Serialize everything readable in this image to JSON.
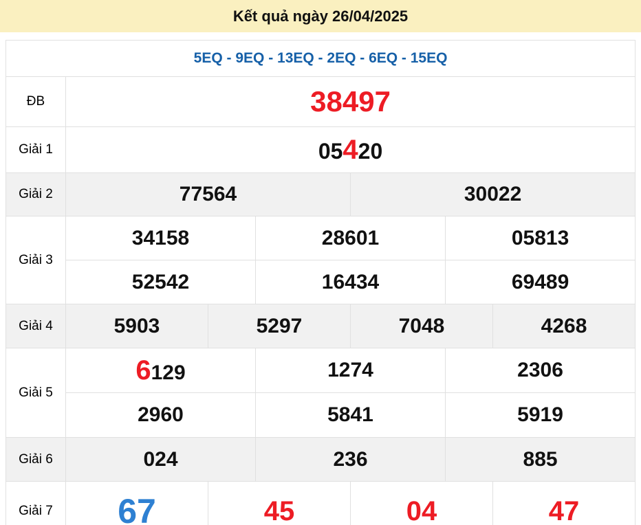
{
  "header": {
    "title": "Kết quả ngày 26/04/2025"
  },
  "station_line": "5EQ - 9EQ - 13EQ - 2EQ - 6EQ - 15EQ",
  "colors": {
    "header_bg": "#faf0c0",
    "station_text": "#1660a8",
    "highlight_red": "#ed1c24",
    "special_blue": "#2e80d2",
    "alt_row_bg": "#f1f1f1",
    "border": "#e0e0e0"
  },
  "results": {
    "db": {
      "label": "ĐB",
      "value": "38497"
    },
    "g1": {
      "label": "Giải 1",
      "pre": "05",
      "hl": "4",
      "post": "20"
    },
    "g2": {
      "label": "Giải 2",
      "values": [
        "77564",
        "30022"
      ]
    },
    "g3": {
      "label": "Giải 3",
      "row1": [
        "34158",
        "28601",
        "05813"
      ],
      "row2": [
        "52542",
        "16434",
        "69489"
      ]
    },
    "g4": {
      "label": "Giải 4",
      "values": [
        "5903",
        "5297",
        "7048",
        "4268"
      ]
    },
    "g5": {
      "label": "Giải 5",
      "row1_hl": "6",
      "row1_rest": "129",
      "row1": [
        "1274",
        "2306"
      ],
      "row2": [
        "2960",
        "5841",
        "5919"
      ]
    },
    "g6": {
      "label": "Giải 6",
      "values": [
        "024",
        "236",
        "885"
      ]
    },
    "g7": {
      "label": "Giải 7",
      "values": [
        "67",
        "45",
        "04",
        "47"
      ]
    }
  }
}
